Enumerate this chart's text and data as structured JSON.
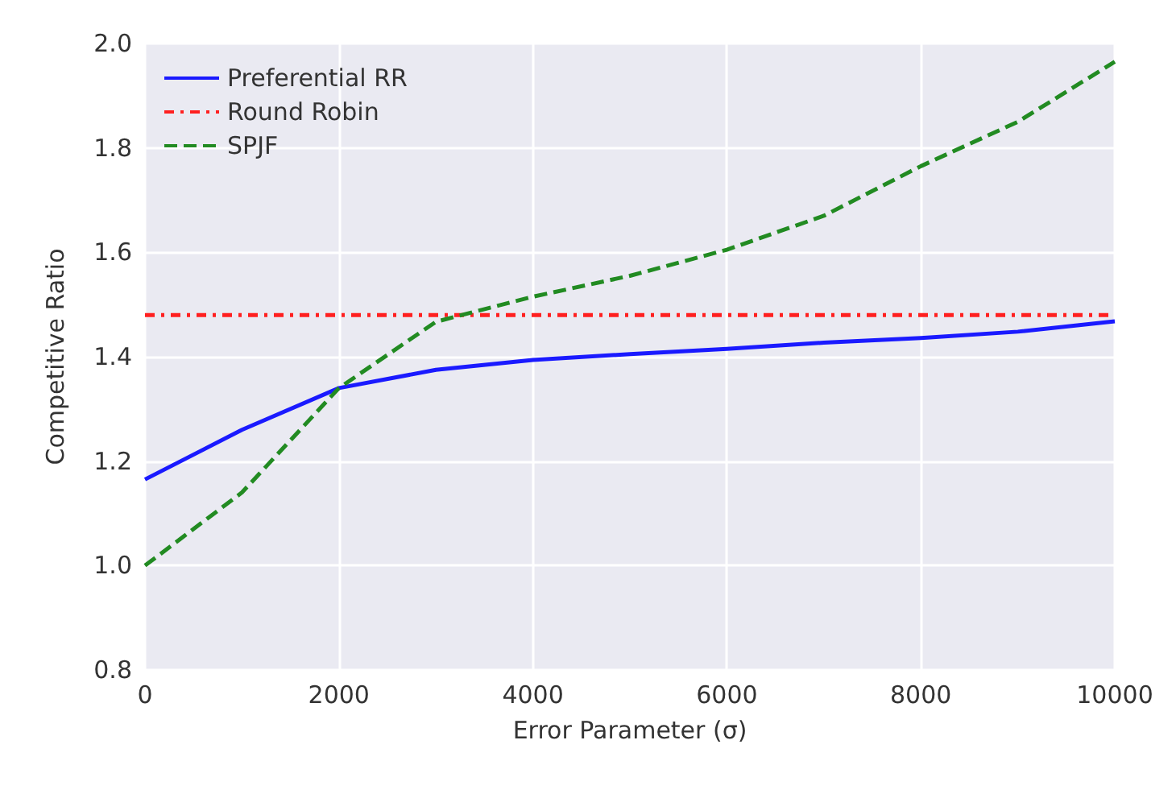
{
  "chart_data": {
    "type": "line",
    "xlabel": "Error Parameter (σ)",
    "ylabel": "Competitive Ratio",
    "x": [
      0,
      1000,
      2000,
      3000,
      4000,
      5000,
      6000,
      7000,
      8000,
      9000,
      10000
    ],
    "series": [
      {
        "name": "Preferential RR",
        "color": "#1a1aff",
        "line_style": "solid",
        "values": [
          1.165,
          1.26,
          1.34,
          1.375,
          1.394,
          1.405,
          1.415,
          1.427,
          1.436,
          1.448,
          1.468
        ]
      },
      {
        "name": "Round Robin",
        "color": "#ff2020",
        "line_style": "dotted",
        "values": [
          1.48,
          1.48,
          1.48,
          1.48,
          1.48,
          1.48,
          1.48,
          1.48,
          1.48,
          1.48,
          1.48
        ]
      },
      {
        "name": "SPJF",
        "color": "#228b22",
        "line_style": "dashed",
        "values": [
          1.0,
          1.14,
          1.34,
          1.467,
          1.515,
          1.555,
          1.605,
          1.67,
          1.765,
          1.85,
          1.965
        ]
      }
    ],
    "xlim": [
      0,
      10000
    ],
    "xticks": [
      0,
      2000,
      4000,
      6000,
      8000,
      10000
    ],
    "ylim": [
      0.8,
      2.0
    ],
    "yticks": [
      0.8,
      {
        "value": 1,
        "label": "1.0"
      },
      1.2,
      1.4,
      1.6,
      1.8,
      {
        "value": 2,
        "label": "2.0"
      }
    ],
    "grid": true,
    "legend": "top left",
    "marker": "none"
  }
}
